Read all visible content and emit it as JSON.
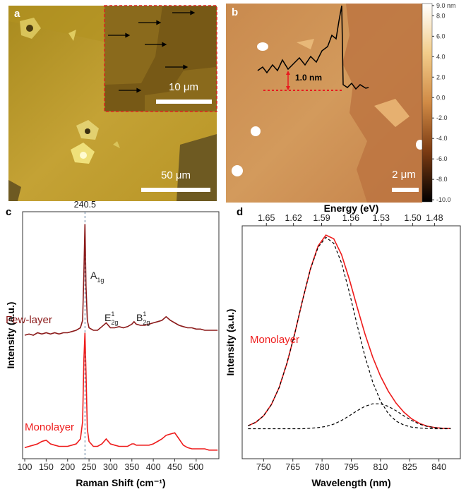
{
  "images": [
    {
      "panel": "a",
      "scale_bars": [
        "10 μm",
        "50 μm"
      ]
    },
    {
      "panel": "b",
      "profile_label": "1.0 nm",
      "scale_bar": "2 μm",
      "colorbar": {
        "lim": [
          -10.2,
          9.2
        ],
        "ticks": [
          {
            "value": 9,
            "label": "9.0 nm"
          },
          {
            "value": 8,
            "label": "8.0"
          },
          {
            "value": 6,
            "label": "6.0"
          },
          {
            "value": 4,
            "label": "4.0"
          },
          {
            "value": 2,
            "label": "2.0"
          },
          {
            "value": 0,
            "label": "0.0"
          },
          {
            "value": -2,
            "label": "-2.0"
          },
          {
            "value": -4,
            "label": "-4.0"
          },
          {
            "value": -6,
            "label": "-6.0"
          },
          {
            "value": -8,
            "label": "-8.0"
          },
          {
            "value": -10,
            "label": "-10.0"
          }
        ]
      }
    }
  ],
  "chart_data": [
    {
      "type": "line",
      "panel": "c",
      "xlabel": "Raman Shift (cm⁻¹)",
      "ylabel": "Intensity (a.u.)",
      "xlim": [
        95,
        553
      ],
      "xticks": [
        100,
        150,
        200,
        250,
        300,
        350,
        400,
        450,
        500
      ],
      "ylim": [
        0,
        10
      ],
      "peak_line": 240.5,
      "annotations": [
        {
          "text": "A",
          "sub": "1g"
        },
        {
          "text": "E",
          "sub": "2g",
          "sup": "1"
        },
        {
          "text": "B",
          "sub": "2g",
          "sup": "1"
        }
      ],
      "x": [
        100,
        110,
        120,
        130,
        140,
        150,
        160,
        170,
        180,
        190,
        200,
        210,
        220,
        230,
        235,
        238,
        240.5,
        243,
        246,
        250,
        260,
        270,
        280,
        290,
        300,
        310,
        320,
        330,
        340,
        350,
        355,
        360,
        370,
        380,
        390,
        400,
        410,
        420,
        430,
        440,
        450,
        460,
        470,
        480,
        490,
        500,
        510,
        520,
        530,
        540,
        550
      ],
      "series": [
        {
          "name": "Few-layer",
          "color": "#8b1a1a",
          "values": [
            5.0,
            5.05,
            5.0,
            5.1,
            5.05,
            5.1,
            5.05,
            5.1,
            5.05,
            5.1,
            5.1,
            5.15,
            5.2,
            5.3,
            5.6,
            7.5,
            9.5,
            7.0,
            5.6,
            5.3,
            5.2,
            5.2,
            5.35,
            5.5,
            5.3,
            5.3,
            5.35,
            5.3,
            5.35,
            5.45,
            5.55,
            5.45,
            5.4,
            5.4,
            5.45,
            5.5,
            5.55,
            5.6,
            5.75,
            5.6,
            5.5,
            5.4,
            5.35,
            5.3,
            5.3,
            5.25,
            5.25,
            5.2,
            5.2,
            5.2,
            5.2
          ]
        },
        {
          "name": "Monolayer",
          "color": "#ee1c1c",
          "values": [
            0.45,
            0.5,
            0.55,
            0.6,
            0.7,
            0.75,
            0.6,
            0.55,
            0.5,
            0.5,
            0.5,
            0.55,
            0.6,
            0.8,
            1.5,
            4.0,
            5.1,
            3.5,
            1.2,
            0.7,
            0.5,
            0.5,
            0.6,
            0.8,
            0.6,
            0.55,
            0.5,
            0.5,
            0.5,
            0.6,
            0.6,
            0.55,
            0.55,
            0.55,
            0.55,
            0.6,
            0.7,
            0.8,
            0.95,
            1.0,
            1.05,
            0.8,
            0.55,
            0.45,
            0.4,
            0.4,
            0.4,
            0.4,
            0.35,
            0.35,
            0.35
          ]
        }
      ]
    },
    {
      "type": "line",
      "panel": "d",
      "xlabel": "Wavelength (nm)",
      "ylabel": "Intensity (a.u.)",
      "x2label": "Energy (eV)",
      "xlim": [
        739,
        851
      ],
      "xticks": [
        750,
        765,
        780,
        795,
        810,
        825,
        840
      ],
      "ylim": [
        -0.02,
        0.99
      ],
      "x2ticks": [
        1.65,
        1.62,
        1.59,
        1.56,
        1.53,
        {
          "value": 1.5,
          "label": "1.50"
        },
        1.48
      ],
      "x": [
        742,
        746,
        750,
        754,
        758,
        762,
        766,
        770,
        774,
        778,
        782,
        786,
        790,
        794,
        798,
        802,
        806,
        810,
        814,
        818,
        822,
        826,
        830,
        834,
        838,
        842,
        846
      ],
      "series": [
        {
          "name": "Monolayer",
          "color": "#ee1c1c",
          "dash": false,
          "values": [
            0.123,
            0.138,
            0.166,
            0.215,
            0.289,
            0.395,
            0.524,
            0.667,
            0.803,
            0.903,
            0.95,
            0.934,
            0.865,
            0.759,
            0.638,
            0.522,
            0.421,
            0.338,
            0.273,
            0.221,
            0.182,
            0.153,
            0.133,
            0.121,
            0.115,
            0.112,
            0.111
          ]
        },
        {
          "color": "#000000",
          "dash": true,
          "values": [
            0.123,
            0.138,
            0.166,
            0.215,
            0.289,
            0.395,
            0.524,
            0.667,
            0.801,
            0.898,
            0.94,
            0.914,
            0.829,
            0.703,
            0.56,
            0.425,
            0.313,
            0.23,
            0.176,
            0.143,
            0.126,
            0.117,
            0.113,
            0.111,
            0.11,
            0.11,
            0.11
          ]
        },
        {
          "color": "#000000",
          "dash": true,
          "values": [
            0.11,
            0.11,
            0.11,
            0.11,
            0.11,
            0.11,
            0.11,
            0.11,
            0.112,
            0.115,
            0.12,
            0.13,
            0.146,
            0.166,
            0.188,
            0.207,
            0.218,
            0.218,
            0.207,
            0.188,
            0.166,
            0.146,
            0.13,
            0.12,
            0.115,
            0.112,
            0.111
          ]
        }
      ]
    }
  ]
}
